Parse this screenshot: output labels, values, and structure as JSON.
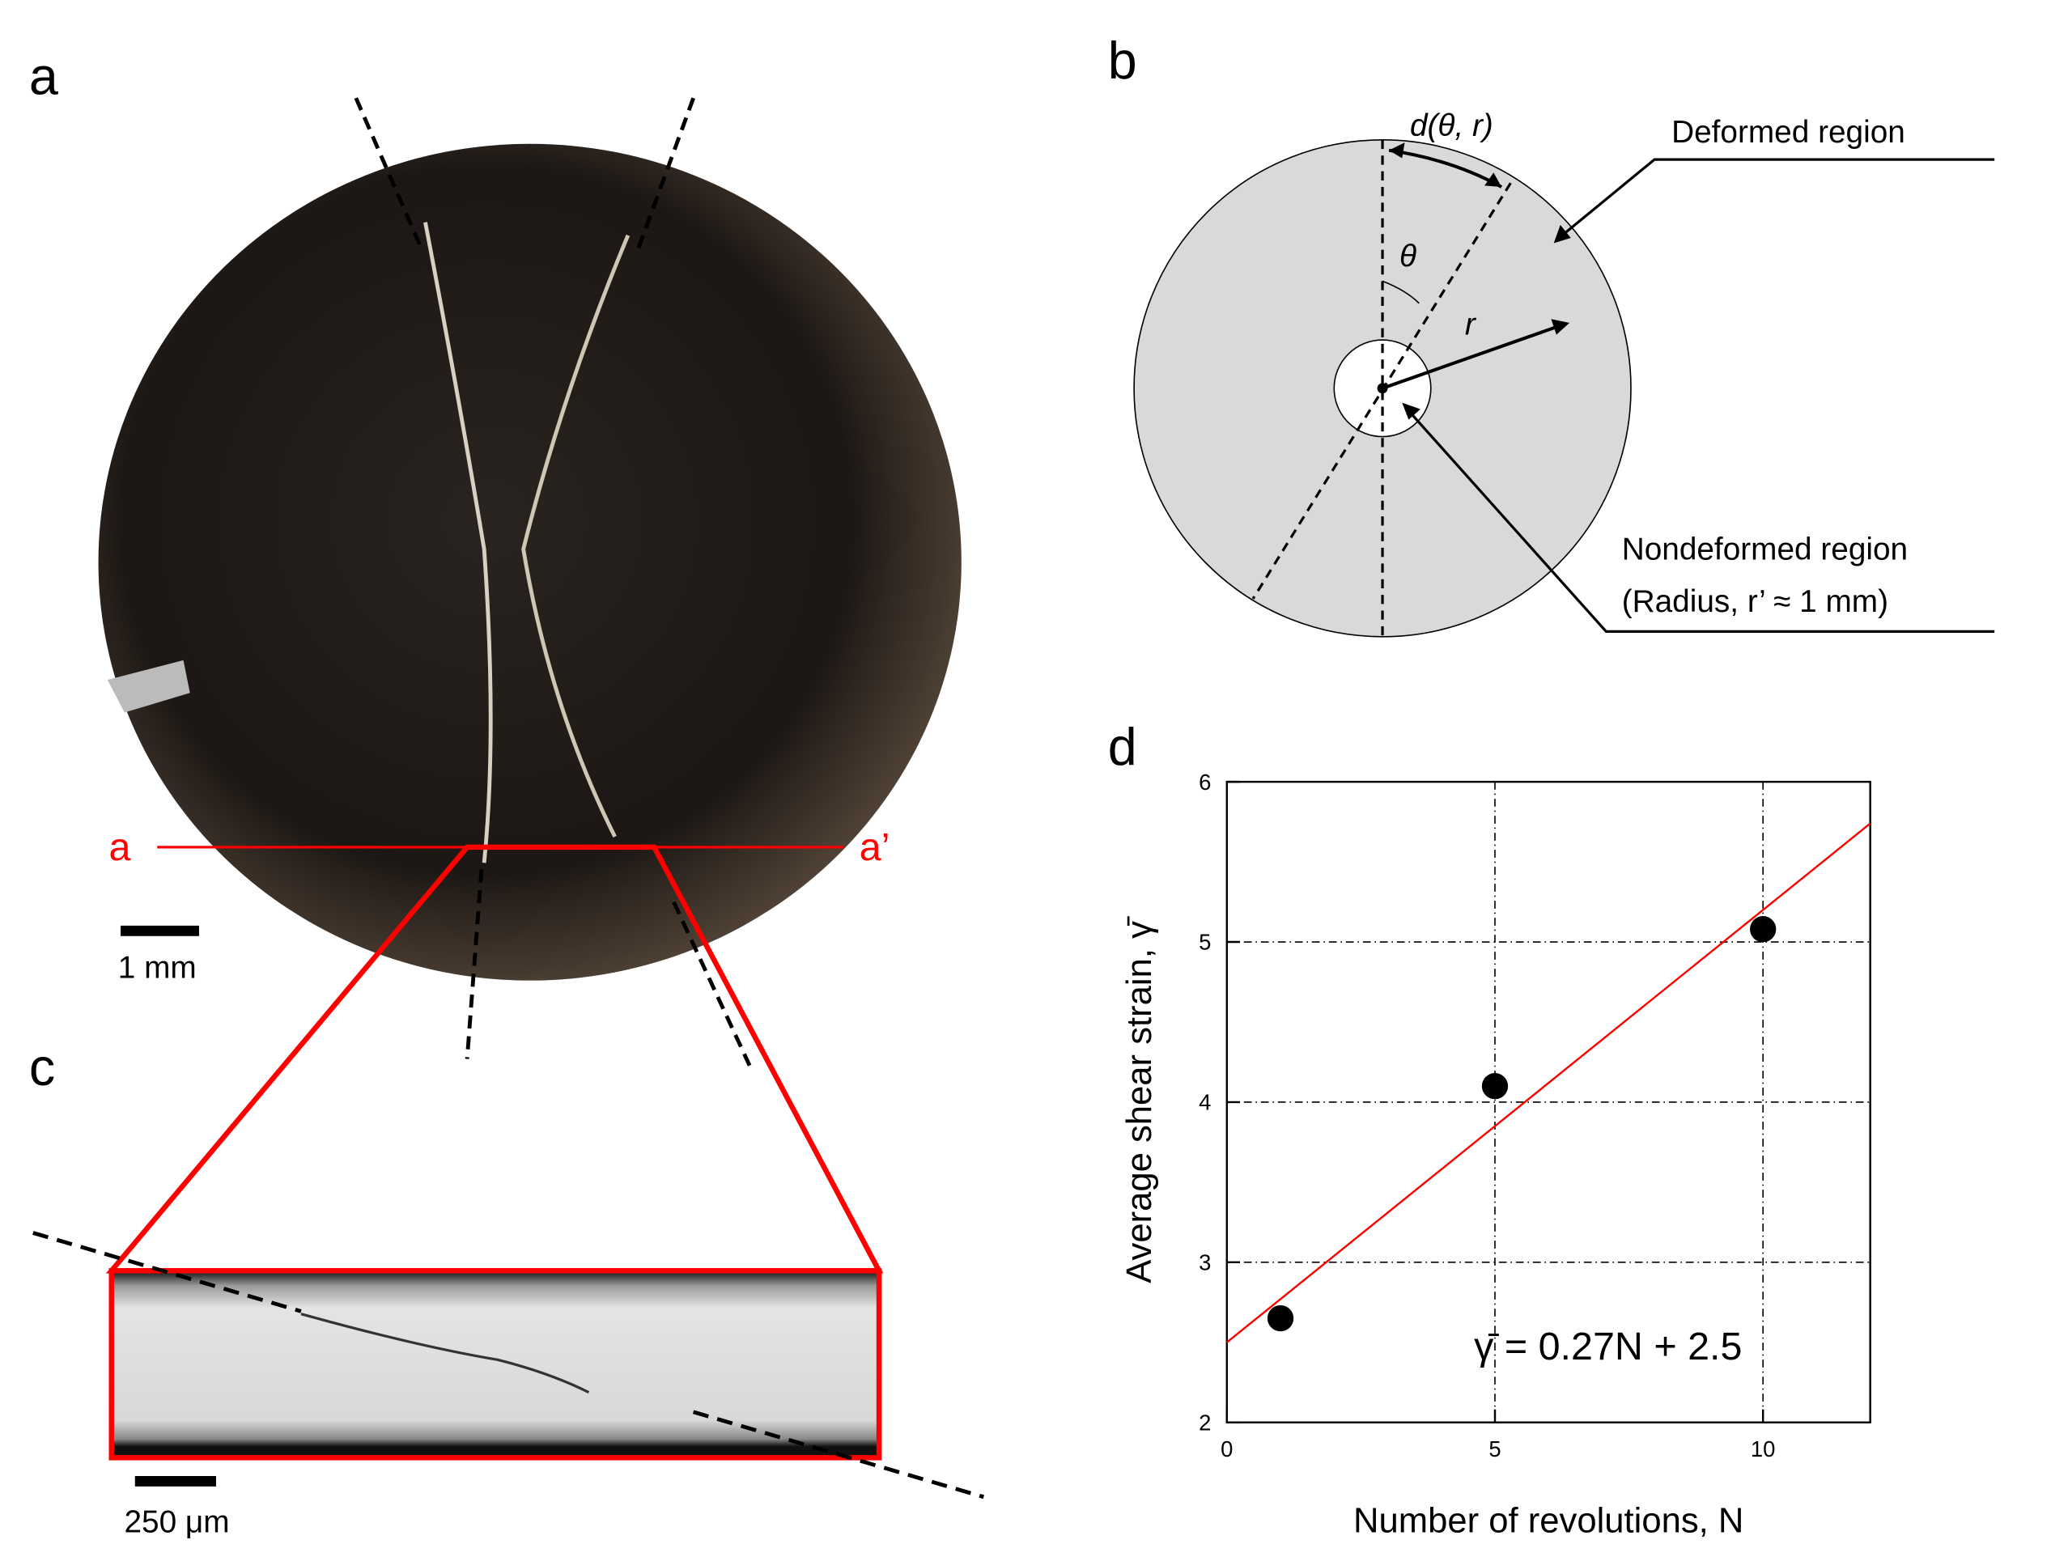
{
  "panels": {
    "a": {
      "label": "a",
      "section_start": "a",
      "section_end": "a’",
      "scale_bar": "1 mm"
    },
    "b": {
      "label": "b",
      "arc_label": "d(θ, r)",
      "angle_label": "θ",
      "radius_label": "r",
      "deformed": "Deformed region",
      "nondeformed": "Nondeformed region",
      "radius_note": "(Radius, r’ ≈ 1 mm)"
    },
    "c": {
      "label": "c",
      "scale_bar": "250 μm"
    },
    "d": {
      "label": "d"
    }
  },
  "chart_data": {
    "type": "scatter",
    "xlabel": "Number of revolutions, N",
    "ylabel": "Average shear strain, γ̄",
    "x": [
      1,
      5,
      10
    ],
    "values": [
      2.65,
      4.1,
      5.08
    ],
    "color": "#000000",
    "xlim": [
      0,
      12
    ],
    "ylim": [
      2,
      6
    ],
    "xticks": [
      0,
      5,
      10
    ],
    "yticks": [
      2,
      3,
      4,
      5,
      6
    ],
    "grid": true,
    "fit": {
      "slope": 0.27,
      "intercept": 2.5,
      "color": "#ff0000",
      "label": "γ̄ = 0.27N + 2.5"
    }
  }
}
